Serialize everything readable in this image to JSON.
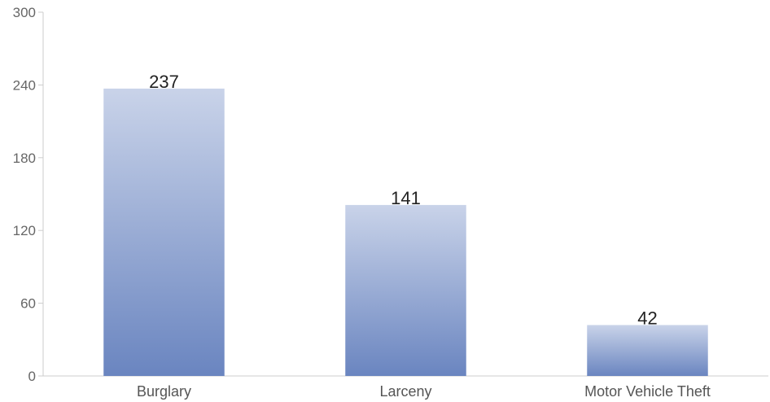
{
  "chart_data": {
    "type": "bar",
    "categories": [
      "Burglary",
      "Larceny",
      "Motor Vehicle Theft"
    ],
    "values": [
      237,
      141,
      42
    ],
    "data_labels": [
      "237",
      "141",
      "42"
    ],
    "yticks": [
      "0",
      "60",
      "120",
      "180",
      "240",
      "300"
    ],
    "ylim": [
      0,
      300
    ],
    "grid": false,
    "legend": "none",
    "colors": {
      "bar_top": "#c9d3e9",
      "bar_bottom": "#6a85c0",
      "axis": "#cccccc"
    }
  }
}
